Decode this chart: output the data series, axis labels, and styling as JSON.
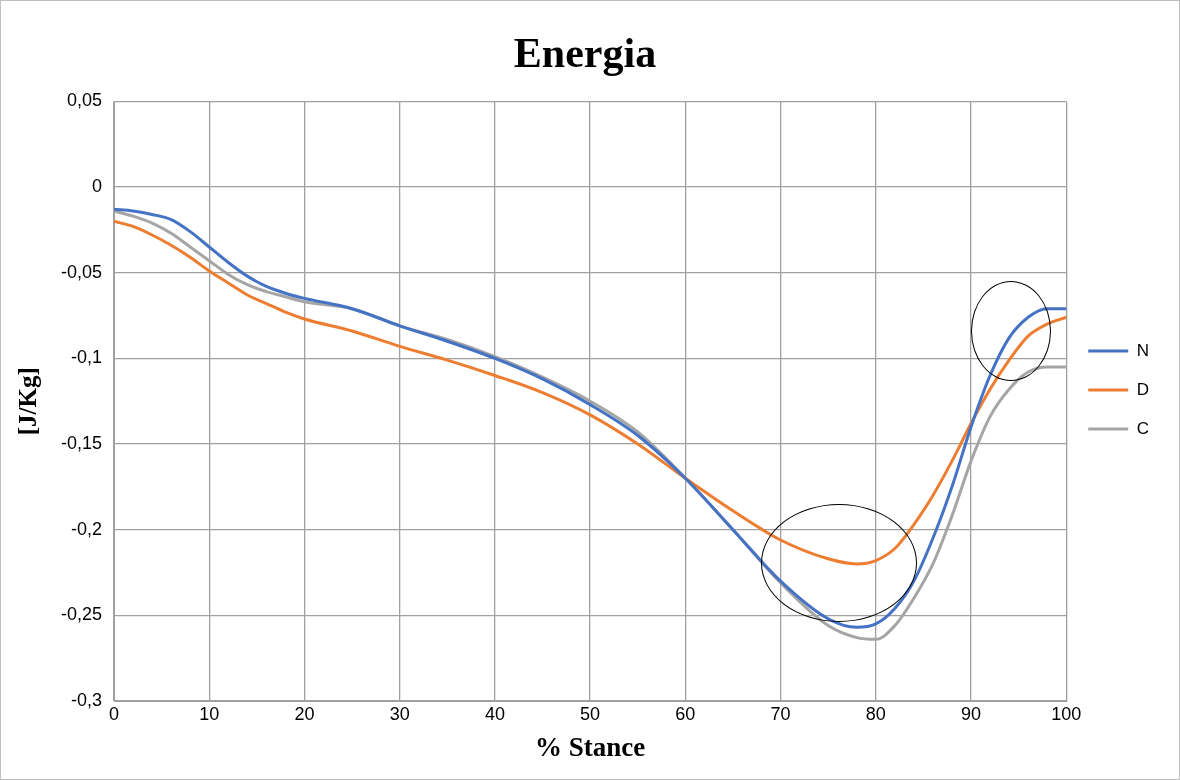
{
  "chart_data": {
    "type": "line",
    "title": "Energia",
    "xlabel": "% Stance",
    "ylabel": "[J/Kg]",
    "x": [
      0,
      2,
      4,
      6,
      8,
      10,
      12,
      14,
      16,
      18,
      20,
      25,
      30,
      35,
      40,
      45,
      50,
      55,
      60,
      65,
      70,
      75,
      78,
      80,
      82,
      84,
      86,
      88,
      90,
      92,
      94,
      96,
      98,
      100
    ],
    "series": [
      {
        "name": "N",
        "color": "#4472c4",
        "values": [
          -0.013,
          -0.014,
          -0.016,
          -0.019,
          -0.026,
          -0.035,
          -0.044,
          -0.052,
          -0.058,
          -0.062,
          -0.065,
          -0.071,
          -0.081,
          -0.09,
          -0.1,
          -0.112,
          -0.127,
          -0.145,
          -0.17,
          -0.2,
          -0.23,
          -0.252,
          -0.257,
          -0.255,
          -0.246,
          -0.23,
          -0.205,
          -0.175,
          -0.14,
          -0.11,
          -0.088,
          -0.076,
          -0.071,
          -0.071
        ]
      },
      {
        "name": "D",
        "color": "#ed7d31",
        "values": [
          -0.02,
          -0.023,
          -0.028,
          -0.034,
          -0.041,
          -0.049,
          -0.056,
          -0.063,
          -0.068,
          -0.073,
          -0.077,
          -0.084,
          -0.093,
          -0.101,
          -0.11,
          -0.12,
          -0.133,
          -0.15,
          -0.17,
          -0.189,
          -0.206,
          -0.217,
          -0.22,
          -0.218,
          -0.211,
          -0.197,
          -0.18,
          -0.16,
          -0.138,
          -0.118,
          -0.101,
          -0.087,
          -0.08,
          -0.076
        ]
      },
      {
        "name": "C",
        "color": "#a5a5a5",
        "values": [
          -0.014,
          -0.017,
          -0.021,
          -0.027,
          -0.035,
          -0.043,
          -0.051,
          -0.057,
          -0.061,
          -0.064,
          -0.067,
          -0.071,
          -0.081,
          -0.089,
          -0.099,
          -0.111,
          -0.125,
          -0.143,
          -0.17,
          -0.2,
          -0.231,
          -0.256,
          -0.263,
          -0.264,
          -0.256,
          -0.24,
          -0.22,
          -0.192,
          -0.16,
          -0.134,
          -0.118,
          -0.108,
          -0.105,
          -0.105
        ]
      }
    ],
    "xlim": [
      0,
      100
    ],
    "xticks": [
      0,
      10,
      20,
      30,
      40,
      50,
      60,
      70,
      80,
      90,
      100
    ],
    "ylim": [
      -0.3,
      0.05
    ],
    "yticks": [
      {
        "value": -0.3,
        "label": "-0,3"
      },
      {
        "value": -0.25,
        "label": "-0,25"
      },
      {
        "value": -0.2,
        "label": "-0,2"
      },
      {
        "value": -0.15,
        "label": "-0,15"
      },
      {
        "value": -0.1,
        "label": "-0,1"
      },
      {
        "value": -0.05,
        "label": "-0,05"
      },
      0,
      {
        "value": 0.05,
        "label": "0,05"
      }
    ],
    "grid": true,
    "legend": "right",
    "marker": "none",
    "line_style": "solid"
  }
}
